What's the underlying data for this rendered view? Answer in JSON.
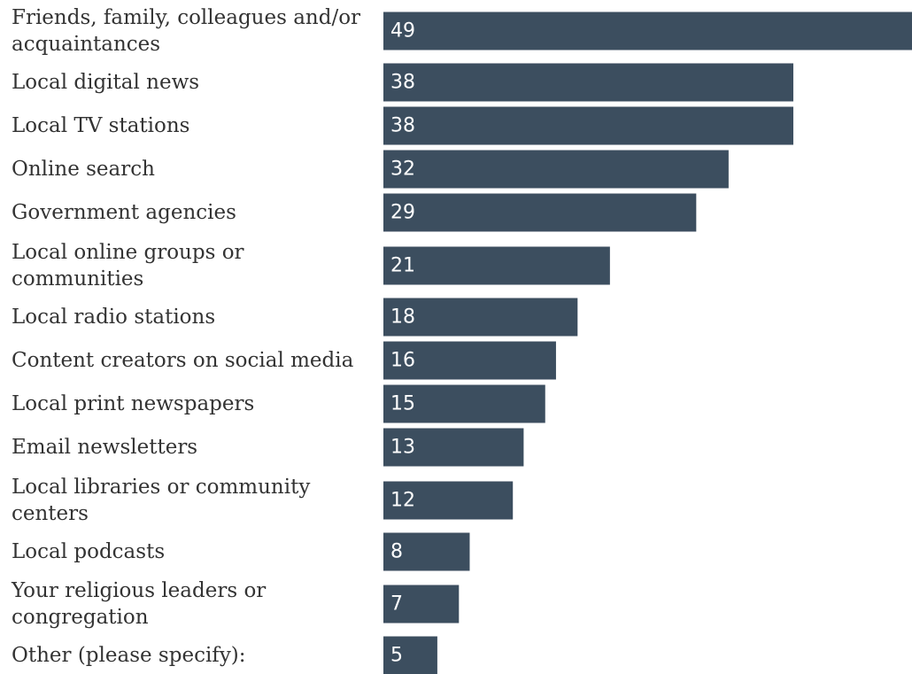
{
  "chart_data": {
    "type": "bar",
    "orientation": "horizontal",
    "categories": [
      "Friends, family, colleagues and/or acquaintances",
      "Local digital news",
      "Local TV stations",
      "Online search",
      "Government agencies",
      "Local online groups or communities",
      "Local radio stations",
      "Content creators on social media",
      "Local print newspapers",
      "Email newsletters",
      "Local libraries or community centers",
      "Local podcasts",
      "Your religious leaders or congregation",
      "Other (please specify):"
    ],
    "category_lines": [
      [
        "Friends, family, colleagues and/or",
        "acquaintances"
      ],
      [
        "Local digital news"
      ],
      [
        "Local TV stations"
      ],
      [
        "Online search"
      ],
      [
        "Government agencies"
      ],
      [
        "Local online groups or",
        "communities"
      ],
      [
        "Local radio stations"
      ],
      [
        "Content creators on social media"
      ],
      [
        "Local print newspapers"
      ],
      [
        "Email newsletters"
      ],
      [
        "Local libraries or community",
        "centers"
      ],
      [
        "Local podcasts"
      ],
      [
        "Your religious leaders or",
        "congregation"
      ],
      [
        "Other (please specify):"
      ]
    ],
    "values": [
      49,
      38,
      38,
      32,
      29,
      21,
      18,
      16,
      15,
      13,
      12,
      8,
      7,
      5
    ],
    "data_labels": [
      "49",
      "38",
      "38",
      "32",
      "29",
      "21",
      "18",
      "16",
      "15",
      "13",
      "12",
      "8",
      "7",
      "5"
    ],
    "xlim": [
      0,
      49
    ],
    "grid": false,
    "bar_color": "#3c4e5f",
    "title": "",
    "xlabel": "",
    "ylabel": ""
  }
}
